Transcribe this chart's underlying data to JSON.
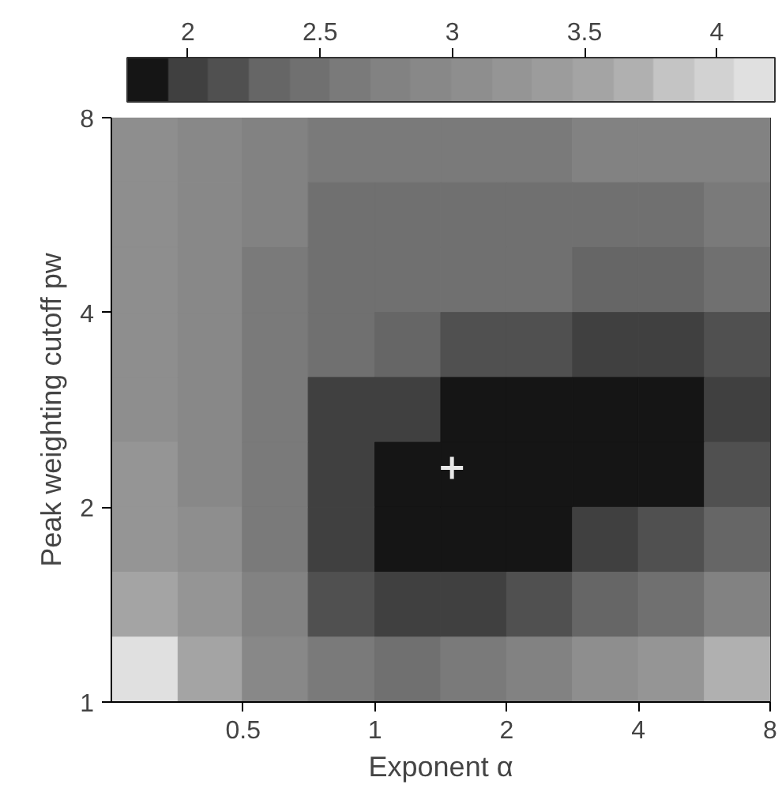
{
  "chart_data": {
    "type": "heatmap",
    "xlabel": "Exponent α",
    "ylabel": "Peak weighting cutoff pw",
    "x": [
      0.3,
      0.42,
      0.59,
      0.84,
      1.19,
      1.68,
      2.38,
      3.36,
      4.76,
      6.73
    ],
    "cells": [
      [
        3.0,
        2.9,
        2.7,
        2.6,
        2.6,
        2.6,
        2.6,
        2.7,
        2.7,
        2.7
      ],
      [
        3.0,
        2.9,
        2.7,
        2.5,
        2.5,
        2.5,
        2.5,
        2.5,
        2.5,
        2.6
      ],
      [
        3.0,
        2.9,
        2.6,
        2.5,
        2.4,
        2.4,
        2.4,
        2.3,
        2.3,
        2.4
      ],
      [
        3.1,
        2.9,
        2.6,
        2.4,
        2.3,
        2.2,
        2.1,
        2.0,
        2.0,
        2.1
      ],
      [
        3.1,
        2.9,
        2.6,
        2.0,
        1.95,
        1.9,
        1.9,
        1.85,
        1.9,
        2.0
      ],
      [
        3.2,
        2.9,
        2.6,
        2.0,
        1.85,
        1.85,
        1.85,
        1.85,
        1.9,
        2.1
      ],
      [
        3.3,
        3.0,
        2.6,
        1.95,
        1.85,
        1.85,
        1.9,
        2.0,
        2.1,
        2.3
      ],
      [
        3.6,
        3.2,
        2.7,
        2.2,
        2.0,
        2.0,
        2.1,
        2.3,
        2.5,
        2.7
      ],
      [
        4.1,
        3.6,
        2.9,
        2.6,
        2.5,
        2.6,
        2.8,
        3.0,
        3.3,
        3.7
      ]
    ],
    "colors": [
      "#151515",
      "#404040",
      "#505050",
      "#666666",
      "#707070",
      "#7a7a7a",
      "#828282",
      "#888888",
      "#8e8e8e",
      "#959595",
      "#9c9c9c",
      "#a4a4a4",
      "#b0b0b0",
      "#c4c4c4",
      "#d2d2d2",
      "#e0e0e0"
    ],
    "clim": [
      1.77,
      4.22
    ],
    "cticks": [
      2,
      2.5,
      3,
      3.5,
      4
    ],
    "xlim": [
      0.25,
      8
    ],
    "xticks": [
      0.5,
      1,
      2,
      4,
      8
    ],
    "ylim": [
      1,
      8
    ],
    "yticks": [
      1,
      2,
      4,
      8
    ],
    "log": "xy",
    "series": [
      {
        "type": "scatter",
        "x": [
          1.5
        ],
        "values": [
          2.3
        ],
        "color": "#e8e8e8",
        "marker": "cross"
      }
    ]
  }
}
